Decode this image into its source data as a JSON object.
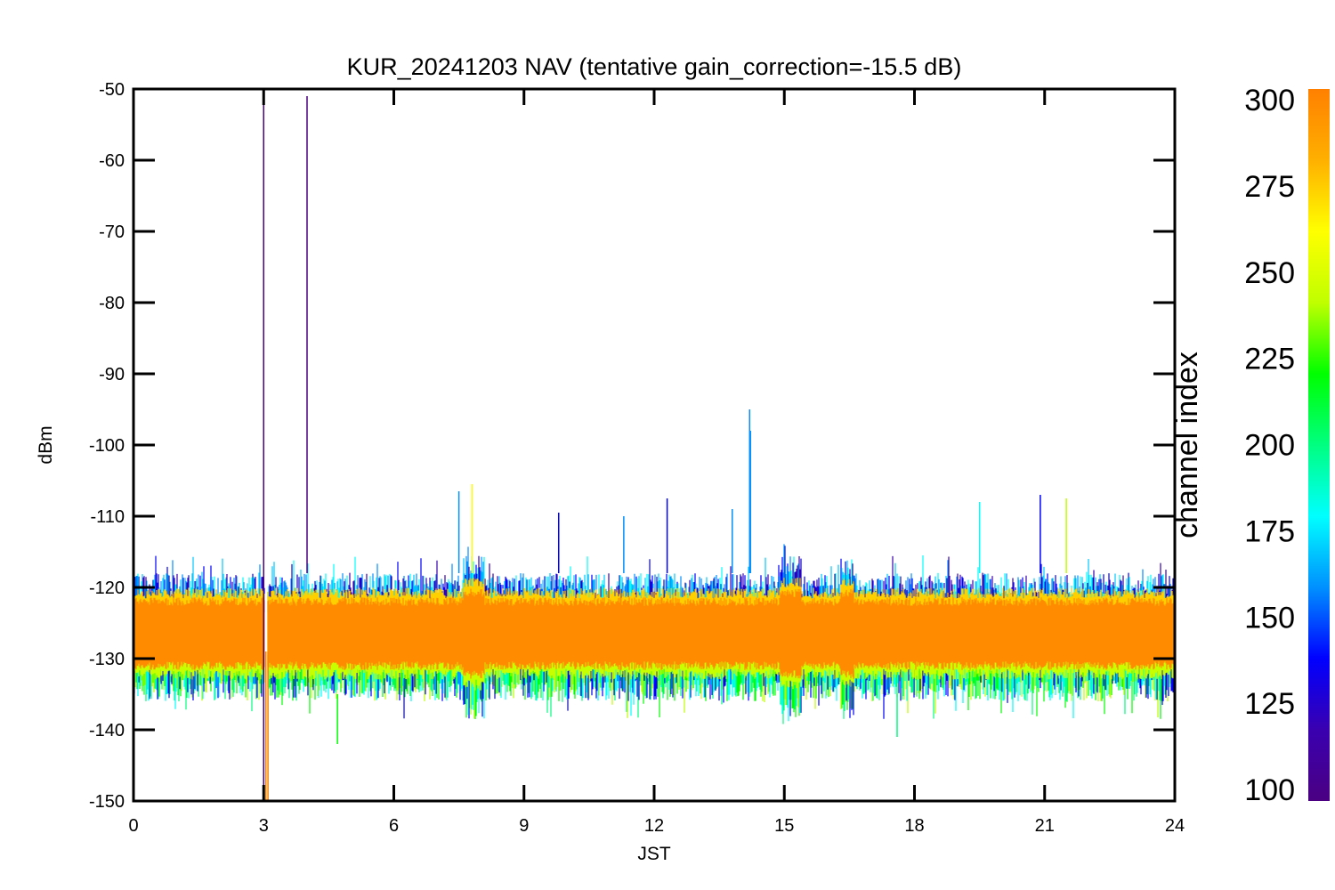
{
  "chart_data": {
    "type": "line",
    "title": "KUR_20241203 NAV (tentative gain_correction=-15.5 dB)",
    "xlabel": "JST",
    "ylabel": "dBm",
    "xlim": [
      0,
      24
    ],
    "ylim": [
      -150,
      -50
    ],
    "xticks": [
      "0",
      "3",
      "6",
      "9",
      "12",
      "15",
      "18",
      "21",
      "24"
    ],
    "yticks": [
      "-50",
      "-60",
      "-70",
      "-80",
      "-90",
      "-100",
      "-110",
      "-120",
      "-130",
      "-140",
      "-150"
    ],
    "colorbar": {
      "label": "channel index",
      "range": [
        100,
        300
      ],
      "ticks": [
        "300",
        "275",
        "250",
        "225",
        "200",
        "175",
        "150",
        "125",
        "100"
      ],
      "colormap": [
        "#4b0082",
        "#3a00b0",
        "#0000ff",
        "#0090ff",
        "#00ffff",
        "#00ff80",
        "#00ff00",
        "#c0ff00",
        "#ffff00",
        "#ffb000",
        "#ff8000"
      ]
    },
    "band": {
      "core_mean": -126.5,
      "core_halfwidth": 4.5,
      "outer_top": -119.5,
      "outer_bottom": -134.5
    },
    "spikes": [
      {
        "x": 3.0,
        "y_top": -51,
        "y_bottom": -150,
        "color": "#4b0082"
      },
      {
        "x": 4.0,
        "y_top": -51,
        "y_bottom": -118,
        "color": "#4b0082"
      },
      {
        "x": 3.05,
        "y_top": -129,
        "y_bottom": -150,
        "color": "#ff8000"
      },
      {
        "x": 3.1,
        "y_top": -129,
        "y_bottom": -150,
        "color": "#ff8000"
      },
      {
        "x": 14.2,
        "y_top": -95,
        "y_bottom": -118,
        "color": "#0090ff"
      },
      {
        "x": 14.22,
        "y_top": -98,
        "y_bottom": -118,
        "color": "#0090ff"
      },
      {
        "x": 7.5,
        "y_top": -106.5,
        "y_bottom": -118,
        "color": "#0090ff"
      },
      {
        "x": 7.8,
        "y_top": -105.5,
        "y_bottom": -118,
        "color": "#ffff00"
      },
      {
        "x": 9.8,
        "y_top": -109.5,
        "y_bottom": -118,
        "color": "#0000ff"
      },
      {
        "x": 11.3,
        "y_top": -110,
        "y_bottom": -118,
        "color": "#0090ff"
      },
      {
        "x": 12.3,
        "y_top": -107.5,
        "y_bottom": -118,
        "color": "#0000ff"
      },
      {
        "x": 13.8,
        "y_top": -109,
        "y_bottom": -118,
        "color": "#0090ff"
      },
      {
        "x": 19.5,
        "y_top": -108,
        "y_bottom": -118,
        "color": "#00ffff"
      },
      {
        "x": 20.9,
        "y_top": -107,
        "y_bottom": -118,
        "color": "#0000ff"
      },
      {
        "x": 21.5,
        "y_top": -107.5,
        "y_bottom": -118,
        "color": "#c0ff00"
      },
      {
        "x": 4.7,
        "y_top": -135,
        "y_bottom": -142,
        "color": "#00ff00"
      },
      {
        "x": 17.6,
        "y_top": -135,
        "y_bottom": -141,
        "color": "#00ff80"
      }
    ],
    "bumps": [
      {
        "x_start": 7.6,
        "x_end": 8.1,
        "y_top": -114
      },
      {
        "x_start": 14.9,
        "x_end": 15.4,
        "y_top": -115
      },
      {
        "x_start": 16.3,
        "x_end": 16.6,
        "y_top": -116
      }
    ],
    "gap_x": 3.05,
    "grid": false
  }
}
